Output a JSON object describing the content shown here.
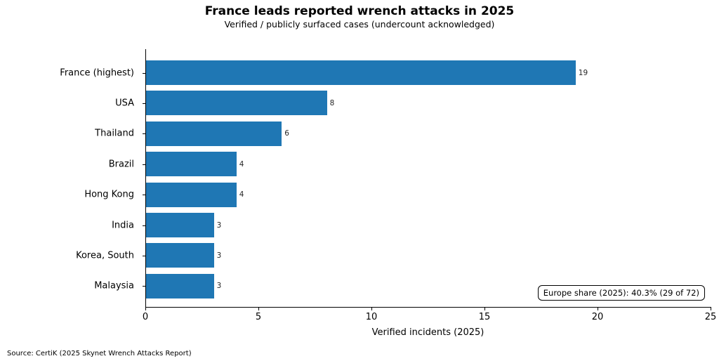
{
  "title": "France leads reported wrench attacks in 2025",
  "subtitle": "Verified / publicly surfaced cases (undercount acknowledged)",
  "annotation": "Europe share (2025): 40.3% (29 of 72)",
  "source": "Source: CertiK (2025 Skynet Wrench Attacks Report)",
  "chart_data": {
    "type": "bar",
    "orientation": "horizontal",
    "title": "France leads reported wrench attacks in 2025",
    "subtitle": "Verified / publicly surfaced cases (undercount acknowledged)",
    "categories": [
      "France (highest)",
      "USA",
      "Thailand",
      "Brazil",
      "Hong Kong",
      "India",
      "Korea, South",
      "Malaysia"
    ],
    "values": [
      19,
      8,
      6,
      4,
      4,
      3,
      3,
      3
    ],
    "xlabel": "Verified incidents (2025)",
    "ylabel": "",
    "xlim": [
      0,
      25
    ],
    "xticks": [
      0,
      5,
      10,
      15,
      20,
      25
    ],
    "bar_color": "#1f77b4",
    "grid": false,
    "legend_position": "none",
    "annotation": "Europe share (2025): 40.3% (29 of 72)"
  }
}
